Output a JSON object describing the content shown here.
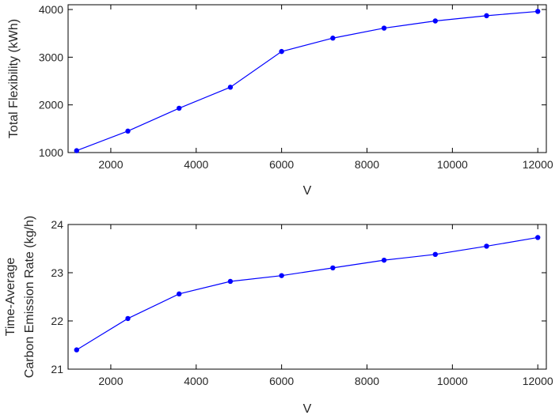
{
  "chart_data": [
    {
      "type": "line",
      "xlabel": "V",
      "ylabel": [
        "Total Flexibility (kWh)"
      ],
      "xlim": [
        1000,
        12200
      ],
      "ylim": [
        1000,
        4100
      ],
      "xticks": [
        2000,
        4000,
        6000,
        8000,
        10000,
        12000
      ],
      "yticks": [
        1000,
        2000,
        3000,
        4000
      ],
      "grid": false,
      "color": "#0000ff",
      "series": [
        {
          "x": [
            1200,
            2400,
            3600,
            4800,
            6000,
            7200,
            8400,
            9600,
            10800,
            12000
          ],
          "values": [
            1040,
            1450,
            1930,
            2370,
            3120,
            3400,
            3610,
            3760,
            3870,
            3960
          ]
        }
      ]
    },
    {
      "type": "line",
      "xlabel": "V",
      "ylabel": [
        "Time-Average",
        "Carbon Emission Rate (kg/h)"
      ],
      "xlim": [
        1000,
        12200
      ],
      "ylim": [
        21,
        24
      ],
      "xticks": [
        2000,
        4000,
        6000,
        8000,
        10000,
        12000
      ],
      "yticks": [
        21,
        22,
        23,
        24
      ],
      "grid": false,
      "color": "#0000ff",
      "series": [
        {
          "x": [
            1200,
            2400,
            3600,
            4800,
            6000,
            7200,
            8400,
            9600,
            10800,
            12000
          ],
          "values": [
            21.4,
            22.05,
            22.56,
            22.82,
            22.94,
            23.1,
            23.26,
            23.38,
            23.55,
            23.73
          ]
        }
      ]
    }
  ]
}
